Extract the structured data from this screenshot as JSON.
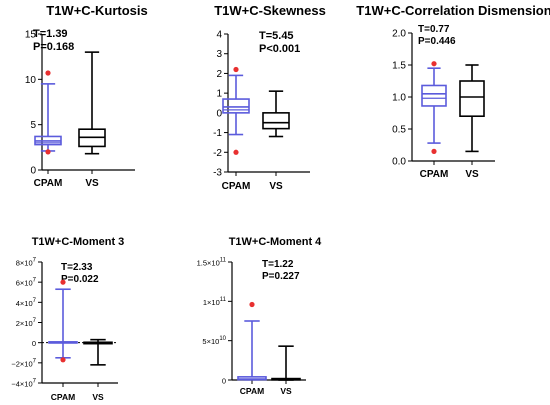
{
  "colors": {
    "cpam": "#5b5bdc",
    "vs": "#000000",
    "outlier": "#e83030"
  },
  "chart_data": [
    {
      "type": "box",
      "title": "T1W+C-Kurtosis",
      "stats": [
        "T=1.39",
        "P=0.168"
      ],
      "categories": [
        "CPAM",
        "VS"
      ],
      "ylim": [
        0,
        15
      ],
      "yticks": [
        {
          "value": 0,
          "label": "0"
        },
        {
          "value": 5,
          "label": "5"
        },
        {
          "value": 10,
          "label": "10"
        },
        {
          "value": 15,
          "label": "15"
        }
      ],
      "series": [
        {
          "category": "CPAM",
          "color": "cpam",
          "min": 2.1,
          "q1": 2.8,
          "median": 3.2,
          "q3": 3.7,
          "max": 9.5,
          "mean_line": 3.0,
          "outliers": [
            10.7,
            2.0
          ]
        },
        {
          "category": "VS",
          "color": "vs",
          "min": 1.8,
          "q1": 2.6,
          "median": 3.6,
          "q3": 4.5,
          "max": 13.0,
          "outliers": []
        }
      ]
    },
    {
      "type": "box",
      "title": "T1W+C-Skewness",
      "stats": [
        "T=5.45",
        "P<0.001"
      ],
      "categories": [
        "CPAM",
        "VS"
      ],
      "ylim": [
        -3,
        4
      ],
      "yticks": [
        {
          "value": -3,
          "label": "-3"
        },
        {
          "value": -2,
          "label": "-2"
        },
        {
          "value": -1,
          "label": "-1"
        },
        {
          "value": 0,
          "label": "0"
        },
        {
          "value": 1,
          "label": "1"
        },
        {
          "value": 2,
          "label": "2"
        },
        {
          "value": 3,
          "label": "3"
        },
        {
          "value": 4,
          "label": "4"
        }
      ],
      "series": [
        {
          "category": "CPAM",
          "color": "cpam",
          "min": -1.1,
          "q1": 0.0,
          "median": 0.3,
          "q3": 0.7,
          "max": 1.9,
          "mean_line": 0.15,
          "outliers": [
            2.2,
            -2.0
          ]
        },
        {
          "category": "VS",
          "color": "vs",
          "min": -1.2,
          "q1": -0.8,
          "median": -0.5,
          "q3": 0.0,
          "max": 1.1,
          "outliers": []
        }
      ]
    },
    {
      "type": "box",
      "title": "T1W+C-Correlation Dismension",
      "stats": [
        "T=0.77",
        "P=0.446"
      ],
      "categories": [
        "CPAM",
        "VS"
      ],
      "ylim": [
        0,
        2
      ],
      "yticks": [
        {
          "value": 0,
          "label": "0.0"
        },
        {
          "value": 0.5,
          "label": "0.5"
        },
        {
          "value": 1.0,
          "label": "1.0"
        },
        {
          "value": 1.5,
          "label": "1.5"
        },
        {
          "value": 2.0,
          "label": "2.0"
        }
      ],
      "series": [
        {
          "category": "CPAM",
          "color": "cpam",
          "min": 0.28,
          "q1": 0.86,
          "median": 1.05,
          "q3": 1.18,
          "max": 1.45,
          "mean_line": 0.98,
          "outliers": [
            1.52,
            0.15
          ]
        },
        {
          "category": "VS",
          "color": "vs",
          "min": 0.15,
          "q1": 0.7,
          "median": 1.0,
          "q3": 1.25,
          "max": 1.5,
          "outliers": []
        }
      ]
    },
    {
      "type": "box",
      "title": "T1W+C-Moment 3",
      "stats": [
        "T=2.33",
        "P=0.022"
      ],
      "categories": [
        "CPAM",
        "VS"
      ],
      "ylim": [
        -40000000,
        80000000
      ],
      "zero_line": true,
      "yticks": [
        {
          "value": 80000000,
          "mant": "8×10",
          "exp": "7"
        },
        {
          "value": 60000000,
          "mant": "6×10",
          "exp": "7"
        },
        {
          "value": 40000000,
          "mant": "4×10",
          "exp": "7"
        },
        {
          "value": 20000000,
          "mant": "2×10",
          "exp": "7"
        },
        {
          "value": 0,
          "mant": "0",
          "exp": ""
        },
        {
          "value": -20000000,
          "mant": "−2×10",
          "exp": "7"
        },
        {
          "value": -40000000,
          "mant": "−4×10",
          "exp": "7"
        }
      ],
      "series": [
        {
          "category": "CPAM",
          "color": "cpam",
          "min": -15000000,
          "q1": -300000,
          "median": 200000,
          "q3": 800000,
          "max": 53000000,
          "outliers": [
            60000000,
            -17000000
          ]
        },
        {
          "category": "VS",
          "color": "vs",
          "min": -22000000,
          "q1": -1000000,
          "median": 0,
          "q3": 400000,
          "max": 3000000,
          "outliers": []
        }
      ]
    },
    {
      "type": "box",
      "title": "T1W+C-Moment 4",
      "stats": [
        "T=1.22",
        "P=0.227"
      ],
      "categories": [
        "CPAM",
        "VS"
      ],
      "ylim": [
        0,
        150000000000
      ],
      "yticks": [
        {
          "value": 0,
          "mant": "0",
          "exp": ""
        },
        {
          "value": 50000000000,
          "mant": "5×10",
          "exp": "10"
        },
        {
          "value": 100000000000,
          "mant": "1×10",
          "exp": "11"
        },
        {
          "value": 150000000000,
          "mant": "1.5×10",
          "exp": "11"
        }
      ],
      "series": [
        {
          "category": "CPAM",
          "color": "cpam",
          "min": 200000000,
          "q1": 500000000,
          "median": 1200000000,
          "q3": 4000000000,
          "max": 75000000000,
          "outliers": [
            96000000000
          ]
        },
        {
          "category": "VS",
          "color": "vs",
          "min": 0,
          "q1": 200000000,
          "median": 600000000,
          "q3": 1800000000,
          "max": 43000000000,
          "outliers": []
        }
      ]
    }
  ]
}
